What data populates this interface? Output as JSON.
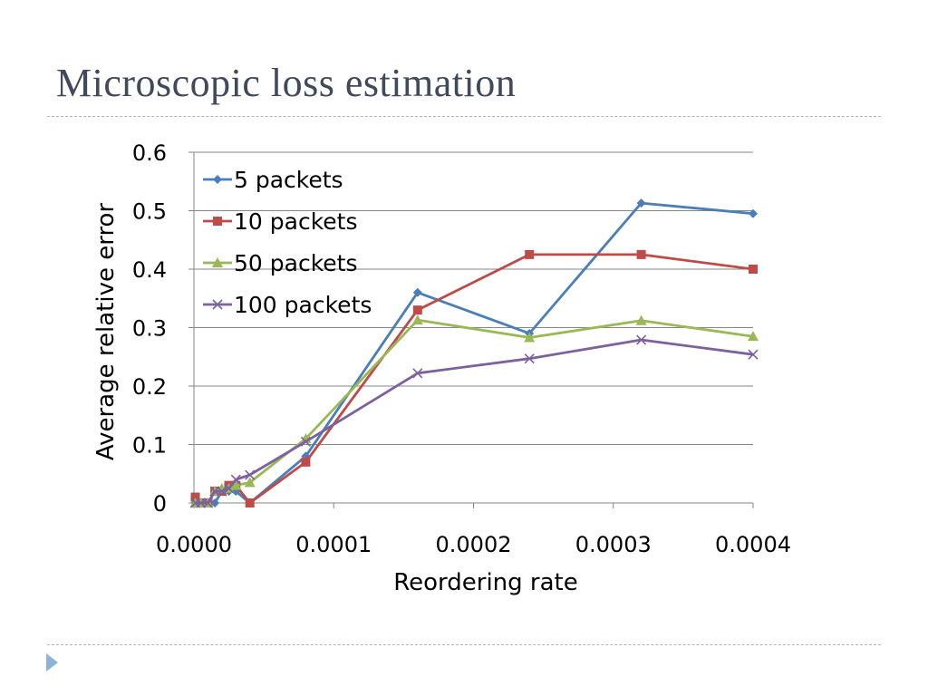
{
  "slide": {
    "title": "Microscopic loss estimation",
    "nav_icon": "triangle-right-icon"
  },
  "chart_data": {
    "type": "line",
    "title": "",
    "xlabel": "Reordering rate",
    "ylabel": "Average relative error",
    "xlim": [
      0,
      0.0004
    ],
    "ylim": [
      0,
      0.6
    ],
    "x_ticks": [
      "0.0000",
      "0.0001",
      "0.0002",
      "0.0003",
      "0.0004"
    ],
    "y_ticks": [
      "0",
      "0.1",
      "0.2",
      "0.3",
      "0.4",
      "0.5",
      "0.6"
    ],
    "grid": "horizontal",
    "legend_position": "top-left",
    "series": [
      {
        "name": "5 packets",
        "color": "#4a7ebb",
        "marker": "diamond",
        "x": [
          1e-06,
          5e-06,
          1e-05,
          1.5e-05,
          2e-05,
          2.5e-05,
          3e-05,
          4e-05,
          8e-05,
          0.00016,
          0.00024,
          0.00032,
          0.0004
        ],
        "y": [
          0.0,
          0.0,
          0.0,
          0.0,
          0.02,
          0.02,
          0.02,
          0.0,
          0.08,
          0.36,
          0.29,
          0.513,
          0.495
        ]
      },
      {
        "name": "10 packets",
        "color": "#be4b48",
        "marker": "square",
        "x": [
          1e-06,
          5e-06,
          1e-05,
          1.5e-05,
          2e-05,
          2.5e-05,
          3e-05,
          4e-05,
          8e-05,
          0.00016,
          0.00024,
          0.00032,
          0.0004
        ],
        "y": [
          0.01,
          0.0,
          0.0,
          0.02,
          0.02,
          0.03,
          0.03,
          0.0,
          0.07,
          0.33,
          0.425,
          0.425,
          0.4
        ]
      },
      {
        "name": "50 packets",
        "color": "#98b954",
        "marker": "triangle",
        "x": [
          1e-06,
          5e-06,
          1e-05,
          1.5e-05,
          2e-05,
          2.5e-05,
          3e-05,
          4e-05,
          8e-05,
          0.00016,
          0.00024,
          0.00032,
          0.0004
        ],
        "y": [
          0.0,
          0.0,
          0.0,
          0.02,
          0.025,
          0.025,
          0.03,
          0.035,
          0.11,
          0.313,
          0.283,
          0.312,
          0.285
        ]
      },
      {
        "name": "100 packets",
        "color": "#7d60a0",
        "marker": "x",
        "x": [
          1e-06,
          5e-06,
          1e-05,
          1.5e-05,
          2e-05,
          2.5e-05,
          3e-05,
          4e-05,
          8e-05,
          0.00016,
          0.00024,
          0.00032,
          0.0004
        ],
        "y": [
          0.0,
          0.0,
          0.0,
          0.02,
          0.02,
          0.025,
          0.04,
          0.048,
          0.105,
          0.222,
          0.247,
          0.279,
          0.254
        ]
      }
    ]
  }
}
